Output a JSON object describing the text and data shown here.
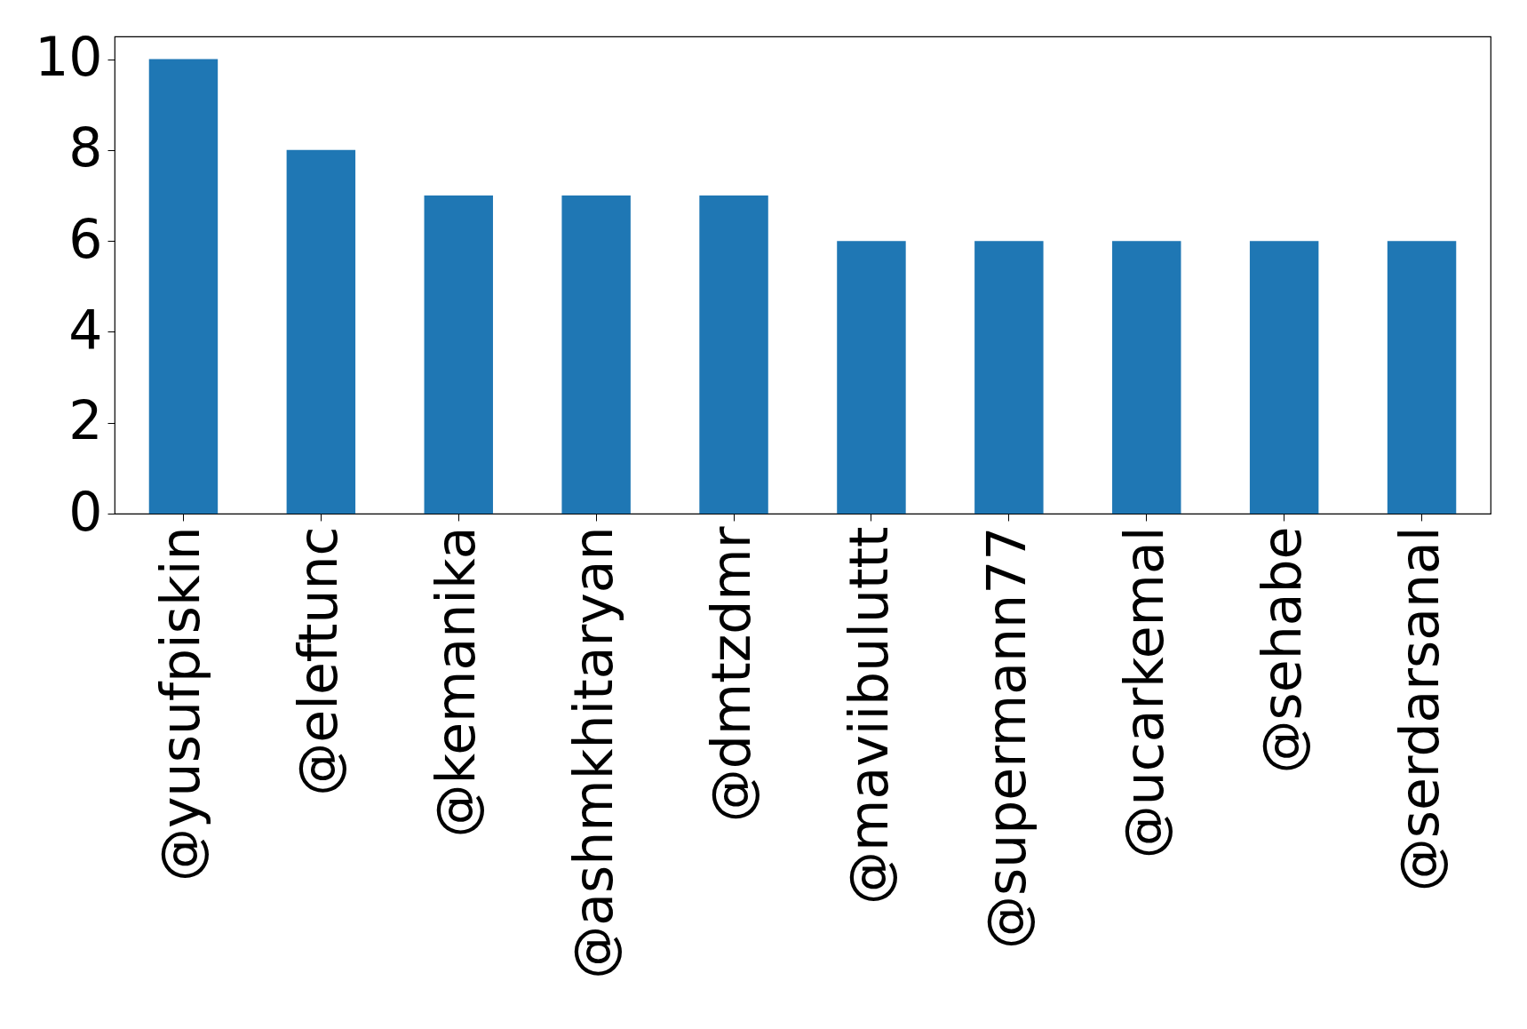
{
  "chart_data": {
    "type": "bar",
    "categories": [
      "@yusufpiskin",
      "@eleftunc",
      "@kemanika",
      "@ashmkhitaryan",
      "@dmtzdmr",
      "@maviibuluttt",
      "@supermann77",
      "@ucarkemal",
      "@sehabe",
      "@serdarsanal"
    ],
    "values": [
      10,
      8,
      7,
      7,
      7,
      6,
      6,
      6,
      6,
      6
    ],
    "color": "#1f77b4",
    "ylim": [
      0,
      10.5
    ],
    "yticks": [
      0,
      2,
      4,
      6,
      8,
      10
    ],
    "grid": false
  }
}
